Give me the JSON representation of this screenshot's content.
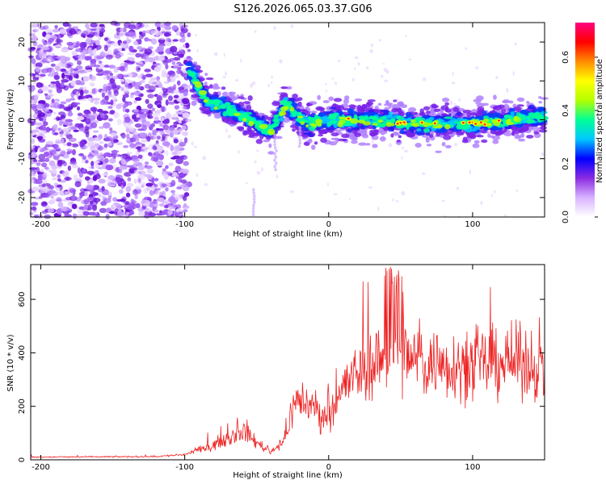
{
  "title": "S126.2026.065.03.37.G06",
  "chart_data": [
    {
      "type": "heatmap",
      "name": "spectrogram",
      "xlabel": "Height of straight line (km)",
      "ylabel": "Frequency (Hz)",
      "xlim": [
        -207,
        150
      ],
      "ylim": [
        -25,
        25
      ],
      "xticks": [
        -200,
        -100,
        0,
        100
      ],
      "yticks": [
        -20,
        -10,
        0,
        10,
        20
      ],
      "colorbar": {
        "label": "Normalized spectral amplitude",
        "range": [
          0.0,
          0.73
        ],
        "ticks": [
          0.0,
          0.2,
          0.4,
          0.6
        ],
        "tick_labels": [
          "0.0",
          "0.2",
          "0.4",
          "0.6"
        ],
        "colors": [
          "#ffffff",
          "#d9b3ff",
          "#8a2be2",
          "#0000ff",
          "#00c8ff",
          "#00ff96",
          "#b4ff00",
          "#ffff00",
          "#ff8c00",
          "#ff0000",
          "#ff0080"
        ]
      },
      "noise_region_km": [
        -207,
        -97
      ],
      "signal_centerline": [
        {
          "x": -97,
          "freq": 13
        },
        {
          "x": -85,
          "freq": 5
        },
        {
          "x": -60,
          "freq": 1
        },
        {
          "x": -40,
          "freq": -3
        },
        {
          "x": -30,
          "freq": 4
        },
        {
          "x": -15,
          "freq": -1
        },
        {
          "x": 0,
          "freq": 0
        },
        {
          "x": 30,
          "freq": 0
        },
        {
          "x": 60,
          "freq": -1
        },
        {
          "x": 100,
          "freq": -1
        },
        {
          "x": 150,
          "freq": 1
        }
      ]
    },
    {
      "type": "line",
      "name": "snr",
      "xlabel": "Height of straight line (km)",
      "ylabel": "SNR (10 * v/v)",
      "xlim": [
        -207,
        150
      ],
      "ylim": [
        0,
        730
      ],
      "xticks": [
        -200,
        -100,
        0,
        100
      ],
      "yticks": [
        0,
        200,
        400,
        600
      ],
      "series_color": "#ee2222",
      "envelope": [
        {
          "x": -207,
          "y": 10
        },
        {
          "x": -120,
          "y": 12
        },
        {
          "x": -100,
          "y": 20
        },
        {
          "x": -85,
          "y": 45
        },
        {
          "x": -70,
          "y": 80
        },
        {
          "x": -60,
          "y": 110
        },
        {
          "x": -50,
          "y": 65
        },
        {
          "x": -40,
          "y": 30
        },
        {
          "x": -30,
          "y": 80
        },
        {
          "x": -25,
          "y": 200
        },
        {
          "x": -20,
          "y": 230
        },
        {
          "x": -10,
          "y": 190
        },
        {
          "x": -2,
          "y": 160
        },
        {
          "x": 5,
          "y": 230
        },
        {
          "x": 15,
          "y": 300
        },
        {
          "x": 30,
          "y": 360
        },
        {
          "x": 45,
          "y": 390
        },
        {
          "x": 60,
          "y": 370
        },
        {
          "x": 80,
          "y": 360
        },
        {
          "x": 100,
          "y": 350
        },
        {
          "x": 120,
          "y": 370
        },
        {
          "x": 140,
          "y": 360
        },
        {
          "x": 150,
          "y": 340
        }
      ]
    }
  ]
}
